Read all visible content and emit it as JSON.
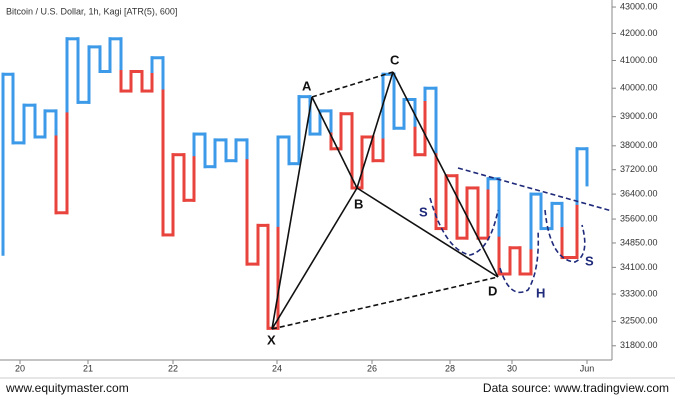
{
  "chart_data": {
    "type": "kagi",
    "title": "Bitcoin / U.S. Dollar, 1h, Kagi [ATR(5), 600]",
    "x": [
      0.3,
      0.3,
      1.3,
      2.4,
      3.5,
      4.5,
      5.6,
      6.7,
      7.8,
      8.9,
      10.0,
      11.0,
      12.1,
      13.1,
      14.2,
      15.2,
      16.3,
      17.3,
      18.4,
      19.4,
      20.5,
      21.5,
      22.6,
      23.6,
      24.7,
      25.8,
      26.8,
      27.8,
      28.9,
      29.9,
      31.0,
      32.0,
      33.1,
      34.1,
      35.2,
      36.2,
      37.3,
      38.3,
      39.4,
      40.4,
      41.5,
      42.5,
      43.6,
      44.6,
      45.7,
      46.7,
      47.8,
      48.8,
      49.9,
      51.0,
      52.0,
      53.1,
      54.1,
      55.2,
      56.2,
      57.7,
      58.7
    ],
    "values": [
      34500,
      40500,
      38100,
      39400,
      38300,
      39200,
      35800,
      41800,
      39500,
      41500,
      40600,
      41800,
      39900,
      40600,
      39900,
      41100,
      35100,
      37700,
      36200,
      38400,
      37300,
      38200,
      37500,
      38200,
      34200,
      35400,
      32300,
      38300,
      37400,
      39700,
      38400,
      39200,
      37900,
      39100,
      36600,
      38300,
      37500,
      40500,
      38600,
      39600,
      37700,
      40000,
      35300,
      37000,
      35000,
      36600,
      35000,
      36900,
      33900,
      34700,
      33900,
      36400,
      35300,
      36100,
      34400,
      37900,
      36700
    ],
    "up_color": "#3c9ae8",
    "down_color": "#e8433c",
    "log_scale": true,
    "xlim": [
      0,
      61.2
    ],
    "xticks": [
      {
        "value": 2.0,
        "label": "20"
      },
      {
        "value": 8.8,
        "label": "21"
      },
      {
        "value": 17.3,
        "label": "22"
      },
      {
        "value": 27.7,
        "label": "24"
      },
      {
        "value": 37.2,
        "label": "26"
      },
      {
        "value": 45.0,
        "label": "28"
      },
      {
        "value": 51.2,
        "label": "30"
      },
      {
        "value": 58.7,
        "label": "Jun"
      }
    ],
    "ylim": [
      31400,
      43270
    ],
    "yticks": [
      {
        "value": 43000,
        "label": "43000.00"
      },
      {
        "value": 42000,
        "label": "42000.00"
      },
      {
        "value": 41000,
        "label": "41000.00"
      },
      {
        "value": 40000,
        "label": "40000.00"
      },
      {
        "value": 39000,
        "label": "39000.00"
      },
      {
        "value": 38000,
        "label": "38000.00"
      },
      {
        "value": 37200,
        "label": "37200.00"
      },
      {
        "value": 36400,
        "label": "36400.00"
      },
      {
        "value": 35600,
        "label": "35600.00"
      },
      {
        "value": 34850,
        "label": "34850.00"
      },
      {
        "value": 34100,
        "label": "34100.00"
      },
      {
        "value": 33300,
        "label": "33300.00"
      },
      {
        "value": 32500,
        "label": "32500.00"
      },
      {
        "value": 31800,
        "label": "31800.00"
      }
    ],
    "pattern_labels": [
      "X",
      "A",
      "B",
      "C",
      "D"
    ],
    "shape_labels": [
      "S",
      "H",
      "S"
    ],
    "credit": "www.equitymaster.com",
    "source": "Data source: www.tradingview.com"
  }
}
